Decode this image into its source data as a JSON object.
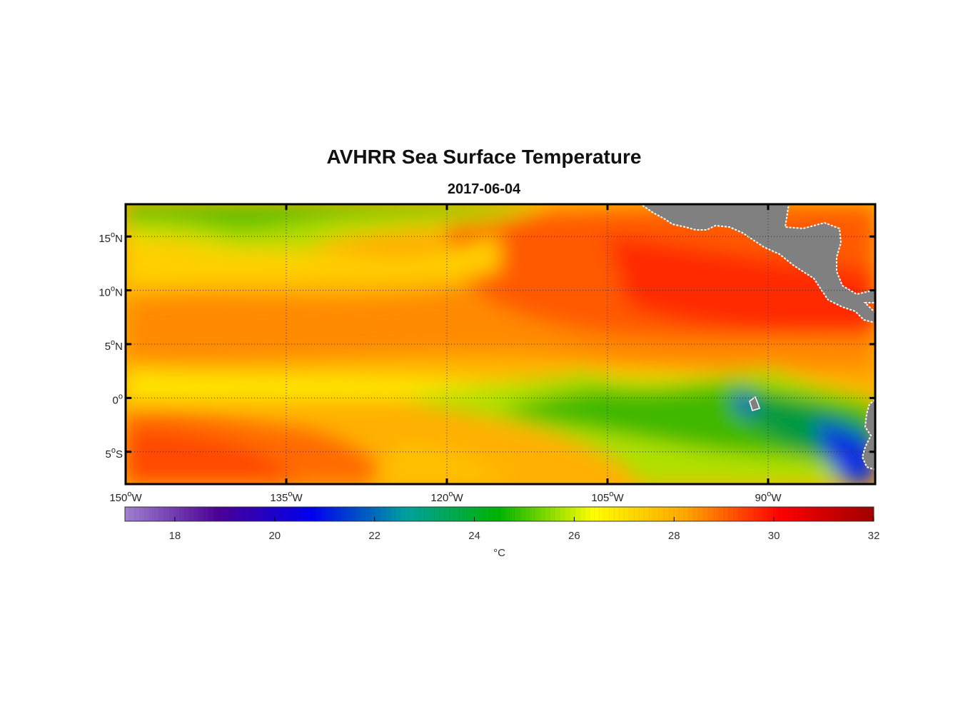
{
  "title": "AVHRR Sea Surface Temperature",
  "date": "2017-06-04",
  "map": {
    "lon_range": [
      -150,
      -80
    ],
    "lat_range": [
      -8,
      18
    ],
    "lon_ticks": [
      {
        "value": -150,
        "deg": "150",
        "hemi": "W"
      },
      {
        "value": -135,
        "deg": "135",
        "hemi": "W"
      },
      {
        "value": -120,
        "deg": "120",
        "hemi": "W"
      },
      {
        "value": -105,
        "deg": "105",
        "hemi": "W"
      },
      {
        "value": -90,
        "deg": "90",
        "hemi": "W"
      }
    ],
    "lat_ticks": [
      {
        "value": 15,
        "deg": "15",
        "hemi": "N"
      },
      {
        "value": 10,
        "deg": "10",
        "hemi": "N"
      },
      {
        "value": 5,
        "deg": "5",
        "hemi": "N"
      },
      {
        "value": 0,
        "deg": "0",
        "hemi": ""
      },
      {
        "value": -5,
        "deg": "5",
        "hemi": "S"
      }
    ],
    "degree_symbol": "o",
    "land_color": "#808080"
  },
  "colorbar": {
    "min": 17,
    "max": 32,
    "ticks": [
      "18",
      "20",
      "22",
      "24",
      "26",
      "28",
      "30",
      "32"
    ],
    "unit": "°C",
    "colors": [
      "#a080d0",
      "#4b0095",
      "#0000f0",
      "#00a0a0",
      "#00b400",
      "#ffff00",
      "#ffa500",
      "#ff0000",
      "#a00000"
    ]
  }
}
